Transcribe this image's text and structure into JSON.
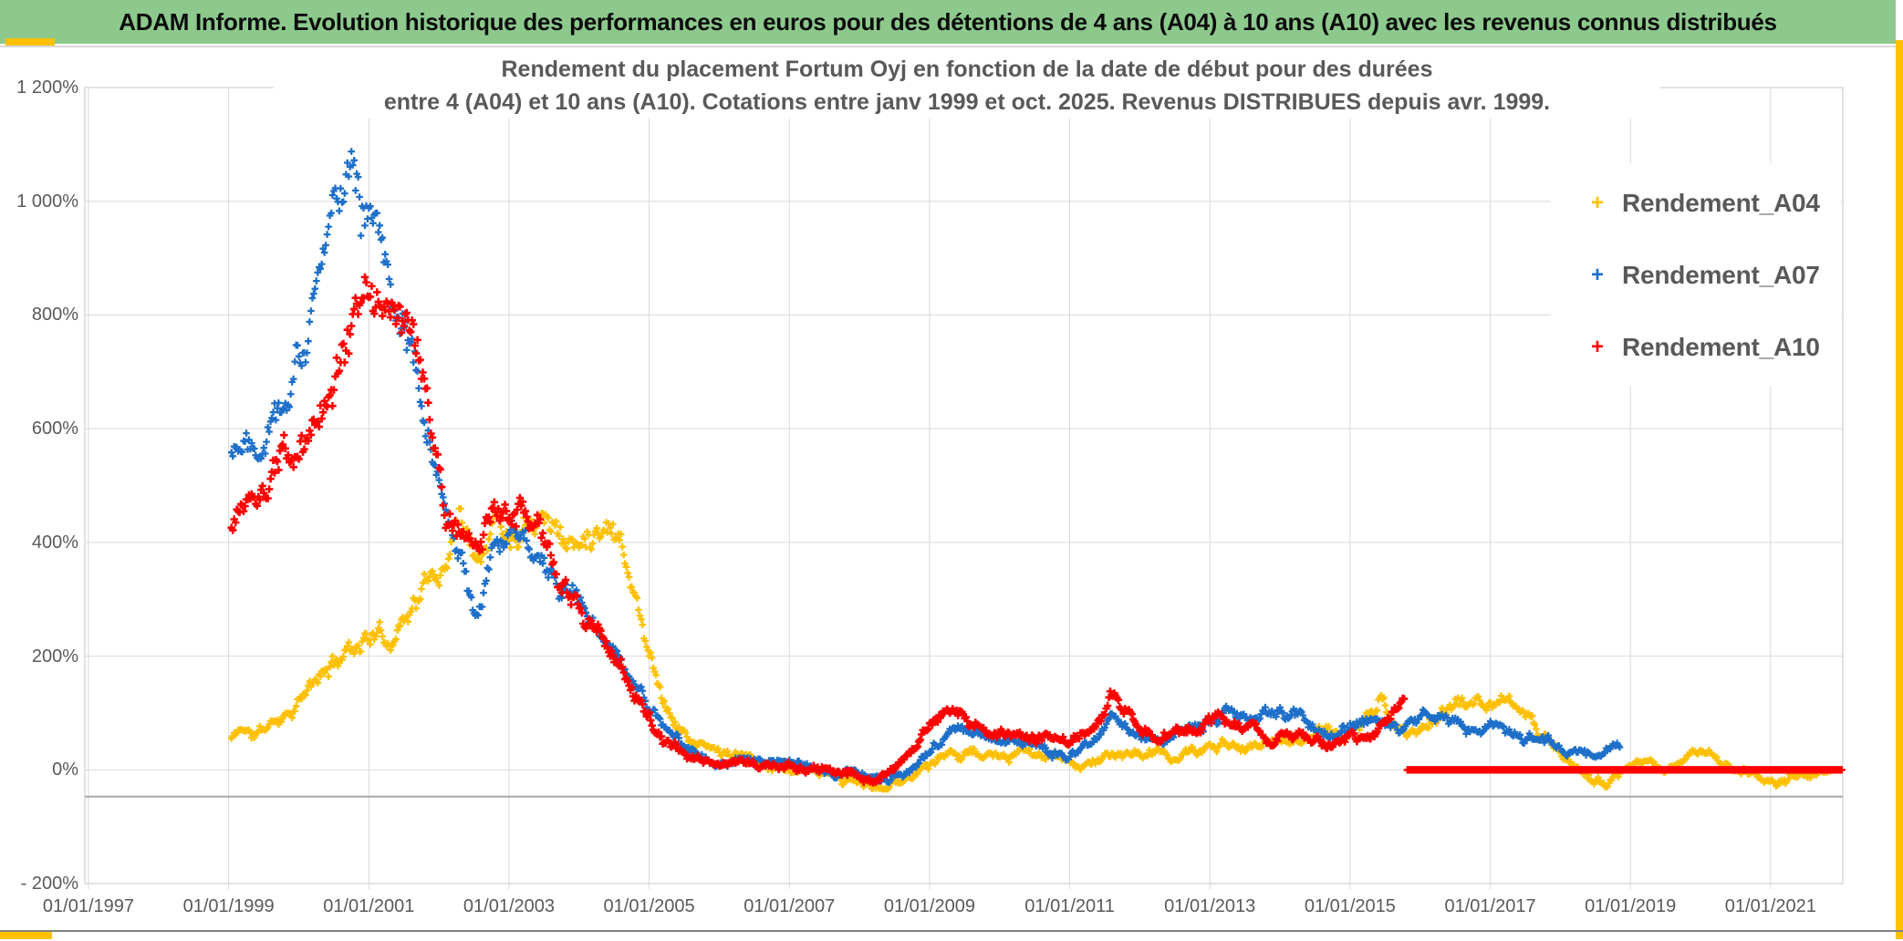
{
  "header": {
    "title": "ADAM Informe. Evolution historique des performances en euros pour des détentions de 4 ans (A04) à 10 ans (A10) avec les revenus connus distribués",
    "bg_color": "#8dc98d",
    "accent_color": "#ffc000"
  },
  "chart_data": {
    "type": "scatter",
    "title_line1": "Rendement du placement Fortum Oyj en fonction de la date de début pour des durées",
    "title_line2": "entre 4 (A04) et 10 ans (A10). Cotations entre janv 1999 et oct. 2025. Revenus DISTRIBUES depuis avr. 1999.",
    "grid": true,
    "grid_color": "#d9d9d9",
    "axis_text_color": "#595959",
    "legend_position": "right-inside",
    "x_axis": {
      "min_year": 1996.948,
      "max_year": 2022.03,
      "tick_years": [
        1997,
        1999,
        2001,
        2003,
        2005,
        2007,
        2009,
        2011,
        2013,
        2015,
        2017,
        2019,
        2021
      ],
      "tick_label_prefix": "01/01/"
    },
    "y_axis": {
      "min": -200,
      "max": 1200,
      "step": 200,
      "ticks": [
        {
          "v": 1200,
          "label": "1 200%"
        },
        {
          "v": 1000,
          "label": "1 000%"
        },
        {
          "v": 800,
          "label": "800%"
        },
        {
          "v": 600,
          "label": "600%"
        },
        {
          "v": 400,
          "label": "400%"
        },
        {
          "v": 200,
          "label": "200%"
        },
        {
          "v": 0,
          "label": "0%"
        },
        {
          "v": -200,
          "label": "- 200%"
        }
      ]
    },
    "baseline": {
      "value_pct": -47,
      "color": "#a6a6a6"
    },
    "legend": [
      {
        "label": "Rendement_A04",
        "color": "#FFC000"
      },
      {
        "label": "Rendement_A07",
        "color": "#1D6FC9"
      },
      {
        "label": "Rendement_A10",
        "color": "#FF0000"
      }
    ],
    "series": [
      {
        "name": "Rendement_A04",
        "color": "#FFC000",
        "marker": "plus",
        "seed": 11,
        "start": 1999.04,
        "end": 2021.85,
        "step_per_year": 52,
        "clamp": [
          -42,
          545
        ],
        "arm": 3.8,
        "stroke": 2.3,
        "anchors": [
          [
            1999.04,
            55
          ],
          [
            1999.2,
            75
          ],
          [
            1999.35,
            60
          ],
          [
            1999.5,
            70
          ],
          [
            1999.7,
            90
          ],
          [
            1999.9,
            110
          ],
          [
            2000.1,
            135
          ],
          [
            2000.3,
            160
          ],
          [
            2000.5,
            185
          ],
          [
            2000.7,
            215
          ],
          [
            2000.9,
            230
          ],
          [
            2001.1,
            245
          ],
          [
            2001.25,
            220
          ],
          [
            2001.4,
            255
          ],
          [
            2001.6,
            290
          ],
          [
            2001.8,
            325
          ],
          [
            2001.95,
            340
          ],
          [
            2002.1,
            360
          ],
          [
            2002.2,
            430
          ],
          [
            2002.3,
            480
          ],
          [
            2002.4,
            420
          ],
          [
            2002.55,
            400
          ],
          [
            2002.7,
            430
          ],
          [
            2002.85,
            460
          ],
          [
            2003.0,
            420
          ],
          [
            2003.15,
            440
          ],
          [
            2003.3,
            470
          ],
          [
            2003.5,
            480
          ],
          [
            2003.65,
            440
          ],
          [
            2003.8,
            410
          ],
          [
            2004.0,
            390
          ],
          [
            2004.2,
            430
          ],
          [
            2004.4,
            450
          ],
          [
            2004.6,
            420
          ],
          [
            2004.8,
            310
          ],
          [
            2005.0,
            210
          ],
          [
            2005.2,
            130
          ],
          [
            2005.4,
            80
          ],
          [
            2005.6,
            50
          ],
          [
            2005.9,
            35
          ],
          [
            2006.2,
            25
          ],
          [
            2006.5,
            15
          ],
          [
            2006.8,
            5
          ],
          [
            2007.1,
            0
          ],
          [
            2007.4,
            -10
          ],
          [
            2007.7,
            -18
          ],
          [
            2008.0,
            -25
          ],
          [
            2008.3,
            -35
          ],
          [
            2008.6,
            -20
          ],
          [
            2008.9,
            5
          ],
          [
            2009.2,
            25
          ],
          [
            2009.5,
            35
          ],
          [
            2009.8,
            25
          ],
          [
            2010.1,
            18
          ],
          [
            2010.4,
            28
          ],
          [
            2010.7,
            22
          ],
          [
            2011.0,
            12
          ],
          [
            2011.3,
            8
          ],
          [
            2011.6,
            28
          ],
          [
            2011.9,
            22
          ],
          [
            2012.2,
            30
          ],
          [
            2012.5,
            22
          ],
          [
            2012.8,
            32
          ],
          [
            2013.1,
            40
          ],
          [
            2013.4,
            48
          ],
          [
            2013.7,
            42
          ],
          [
            2014.0,
            52
          ],
          [
            2014.3,
            58
          ],
          [
            2014.6,
            68
          ],
          [
            2014.9,
            62
          ],
          [
            2015.1,
            75
          ],
          [
            2015.3,
            95
          ],
          [
            2015.45,
            130
          ],
          [
            2015.6,
            80
          ],
          [
            2015.8,
            55
          ],
          [
            2016.0,
            75
          ],
          [
            2016.3,
            100
          ],
          [
            2016.6,
            118
          ],
          [
            2016.9,
            108
          ],
          [
            2017.2,
            122
          ],
          [
            2017.45,
            100
          ],
          [
            2017.7,
            70
          ],
          [
            2017.95,
            40
          ],
          [
            2018.2,
            10
          ],
          [
            2018.45,
            -18
          ],
          [
            2018.65,
            -22
          ],
          [
            2018.9,
            0
          ],
          [
            2019.2,
            8
          ],
          [
            2019.5,
            -5
          ],
          [
            2019.8,
            28
          ],
          [
            2020.0,
            35
          ],
          [
            2020.3,
            12
          ],
          [
            2020.6,
            2
          ],
          [
            2020.9,
            -15
          ],
          [
            2021.1,
            -22
          ],
          [
            2021.35,
            -8
          ],
          [
            2021.6,
            -15
          ],
          [
            2021.85,
            -12
          ]
        ]
      },
      {
        "name": "Rendement_A07",
        "color": "#1D6FC9",
        "marker": "plus",
        "seed": 22,
        "start": 1999.04,
        "end": 2018.85,
        "step_per_year": 52,
        "clamp": [
          -35,
          1148
        ],
        "arm": 3.8,
        "stroke": 2.3,
        "anchors": [
          [
            1999.04,
            560
          ],
          [
            1999.2,
            600
          ],
          [
            1999.4,
            590
          ],
          [
            1999.6,
            640
          ],
          [
            1999.8,
            680
          ],
          [
            2000.0,
            730
          ],
          [
            2000.2,
            800
          ],
          [
            2000.4,
            900
          ],
          [
            2000.55,
            1000
          ],
          [
            2000.7,
            1090
          ],
          [
            2000.78,
            1130
          ],
          [
            2000.9,
            1030
          ],
          [
            2001.0,
            990
          ],
          [
            2001.15,
            940
          ],
          [
            2001.3,
            880
          ],
          [
            2001.45,
            830
          ],
          [
            2001.6,
            760
          ],
          [
            2001.75,
            650
          ],
          [
            2001.9,
            550
          ],
          [
            2002.0,
            470
          ],
          [
            2002.15,
            420
          ],
          [
            2002.3,
            360
          ],
          [
            2002.5,
            280
          ],
          [
            2002.7,
            360
          ],
          [
            2002.9,
            420
          ],
          [
            2003.1,
            430
          ],
          [
            2003.3,
            410
          ],
          [
            2003.5,
            390
          ],
          [
            2003.7,
            340
          ],
          [
            2003.9,
            300
          ],
          [
            2004.1,
            270
          ],
          [
            2004.4,
            210
          ],
          [
            2004.7,
            160
          ],
          [
            2005.0,
            110
          ],
          [
            2005.3,
            60
          ],
          [
            2005.6,
            30
          ],
          [
            2005.9,
            20
          ],
          [
            2006.3,
            15
          ],
          [
            2006.7,
            8
          ],
          [
            2007.1,
            10
          ],
          [
            2007.5,
            0
          ],
          [
            2007.9,
            -8
          ],
          [
            2008.3,
            -28
          ],
          [
            2008.6,
            -10
          ],
          [
            2008.9,
            25
          ],
          [
            2009.2,
            60
          ],
          [
            2009.5,
            75
          ],
          [
            2009.8,
            60
          ],
          [
            2010.1,
            50
          ],
          [
            2010.4,
            42
          ],
          [
            2010.7,
            35
          ],
          [
            2011.0,
            28
          ],
          [
            2011.3,
            45
          ],
          [
            2011.55,
            90
          ],
          [
            2011.8,
            70
          ],
          [
            2012.1,
            55
          ],
          [
            2012.4,
            48
          ],
          [
            2012.7,
            70
          ],
          [
            2013.0,
            90
          ],
          [
            2013.3,
            100
          ],
          [
            2013.6,
            85
          ],
          [
            2013.9,
            95
          ],
          [
            2014.2,
            100
          ],
          [
            2014.5,
            80
          ],
          [
            2014.8,
            62
          ],
          [
            2015.1,
            85
          ],
          [
            2015.4,
            95
          ],
          [
            2015.7,
            60
          ],
          [
            2015.95,
            85
          ],
          [
            2016.15,
            105
          ],
          [
            2016.4,
            85
          ],
          [
            2016.7,
            65
          ],
          [
            2017.0,
            80
          ],
          [
            2017.3,
            72
          ],
          [
            2017.6,
            55
          ],
          [
            2017.9,
            45
          ],
          [
            2018.2,
            32
          ],
          [
            2018.5,
            25
          ],
          [
            2018.7,
            40
          ],
          [
            2018.85,
            35
          ]
        ]
      },
      {
        "name": "Rendement_A10",
        "color": "#FF0000",
        "marker": "plus",
        "seed": 33,
        "start": 1999.04,
        "end": 2015.78,
        "step_per_year": 52,
        "clamp": [
          -28,
          885
        ],
        "arm": 4.2,
        "stroke": 2.6,
        "zero_run": {
          "from": 2015.82,
          "to": 2022.02
        },
        "anchors": [
          [
            1999.04,
            420
          ],
          [
            1999.2,
            470
          ],
          [
            1999.4,
            450
          ],
          [
            1999.6,
            510
          ],
          [
            1999.8,
            560
          ],
          [
            2000.0,
            540
          ],
          [
            2000.2,
            600
          ],
          [
            2000.4,
            650
          ],
          [
            2000.6,
            720
          ],
          [
            2000.8,
            800
          ],
          [
            2000.95,
            840
          ],
          [
            2001.1,
            810
          ],
          [
            2001.25,
            840
          ],
          [
            2001.4,
            800
          ],
          [
            2001.55,
            770
          ],
          [
            2001.7,
            690
          ],
          [
            2001.85,
            600
          ],
          [
            2002.0,
            520
          ],
          [
            2002.1,
            450
          ],
          [
            2002.25,
            430
          ],
          [
            2002.4,
            415
          ],
          [
            2002.6,
            400
          ],
          [
            2002.8,
            430
          ],
          [
            2003.0,
            420
          ],
          [
            2003.2,
            440
          ],
          [
            2003.4,
            400
          ],
          [
            2003.6,
            350
          ],
          [
            2003.8,
            310
          ],
          [
            2004.0,
            280
          ],
          [
            2004.3,
            240
          ],
          [
            2004.6,
            180
          ],
          [
            2004.9,
            120
          ],
          [
            2005.2,
            50
          ],
          [
            2005.5,
            20
          ],
          [
            2005.8,
            12
          ],
          [
            2006.2,
            8
          ],
          [
            2006.6,
            5
          ],
          [
            2007.0,
            8
          ],
          [
            2007.4,
            0
          ],
          [
            2007.8,
            -5
          ],
          [
            2008.2,
            -15
          ],
          [
            2008.5,
            0
          ],
          [
            2008.8,
            35
          ],
          [
            2009.1,
            85
          ],
          [
            2009.3,
            105
          ],
          [
            2009.6,
            85
          ],
          [
            2009.9,
            70
          ],
          [
            2010.2,
            60
          ],
          [
            2010.5,
            50
          ],
          [
            2010.8,
            60
          ],
          [
            2011.1,
            55
          ],
          [
            2011.35,
            80
          ],
          [
            2011.6,
            135
          ],
          [
            2011.8,
            105
          ],
          [
            2012.0,
            70
          ],
          [
            2012.3,
            58
          ],
          [
            2012.6,
            68
          ],
          [
            2012.9,
            80
          ],
          [
            2013.2,
            90
          ],
          [
            2013.5,
            70
          ],
          [
            2013.8,
            60
          ],
          [
            2014.1,
            62
          ],
          [
            2014.4,
            52
          ],
          [
            2014.7,
            42
          ],
          [
            2015.0,
            55
          ],
          [
            2015.3,
            45
          ],
          [
            2015.55,
            90
          ],
          [
            2015.75,
            125
          ]
        ]
      }
    ]
  }
}
